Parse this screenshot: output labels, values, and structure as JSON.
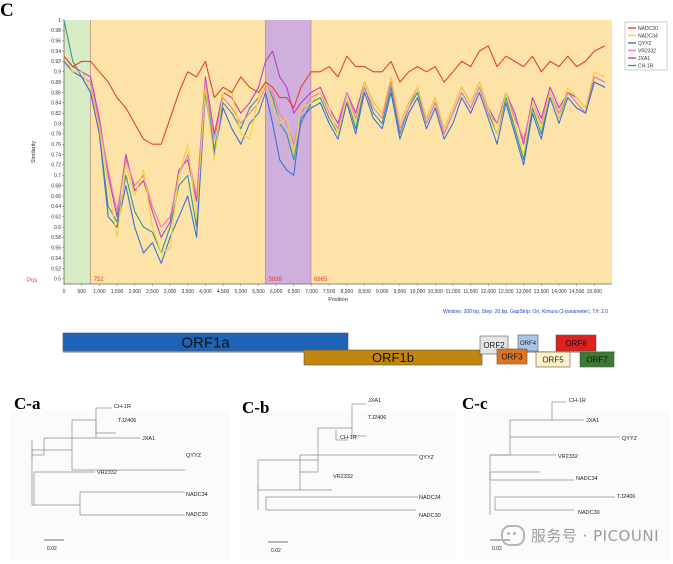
{
  "panel_labels": {
    "main": "C",
    "tree_a": "C-a",
    "tree_b": "C-b",
    "tree_c": "C-c"
  },
  "watermark": "服务号 · PICOUNI",
  "colors": {
    "NADC30": "#e8402a",
    "NADC34": "#f2d23a",
    "QYYZ": "#3f6fd8",
    "VR2332": "#f07ab0",
    "JXA1": "#c23cc4",
    "CH-1R": "#2f9a8e",
    "plot_bg": "#fde3a7",
    "green_region": "#d7ecc4",
    "purple_region": "#cfb0dc",
    "orf1a": "#1f63b7",
    "orf1b": "#c2860c",
    "orf2": "#e5e5e5",
    "orf4": "#a9c6ec",
    "orf6": "#e0201e",
    "orf3": "#e0731c",
    "orf5": "#fff2c6",
    "orf7": "#3b7a34"
  },
  "chart_data": [
    {
      "type": "line",
      "title": "",
      "xlabel": "Position",
      "ylabel": "Similarity",
      "xlim": [
        0,
        15500
      ],
      "ylim": [
        0.49,
        1.0
      ],
      "yticks": [
        0.5,
        0.52,
        0.54,
        0.56,
        0.58,
        0.6,
        0.62,
        0.64,
        0.66,
        0.68,
        0.7,
        0.72,
        0.74,
        0.76,
        0.78,
        0.8,
        0.82,
        0.84,
        0.86,
        0.88,
        0.9,
        0.92,
        0.94,
        0.96,
        0.98,
        1.0
      ],
      "ytick_labels": [
        "0.5",
        "0.52",
        "0.54",
        "0.56",
        "0.58",
        "0.6",
        "0.62",
        "0.64",
        "0.66",
        "0.68",
        "0.7",
        "0.72",
        "0.74",
        "0.76",
        "0.78",
        "0.8",
        "0.82",
        "0.84",
        "0.86",
        "0.88",
        "0.9",
        "0.92",
        "0.94",
        "0.96",
        "0.98",
        "1"
      ],
      "xticks": [
        0,
        500,
        1000,
        1500,
        2000,
        2500,
        3000,
        3500,
        4000,
        4500,
        5000,
        5500,
        6000,
        6500,
        7000,
        7500,
        8000,
        8500,
        9000,
        9500,
        10000,
        10500,
        11000,
        11500,
        12000,
        12500,
        13000,
        13500,
        14000,
        14500,
        15000
      ],
      "xtick_labels": [
        "0",
        "500",
        "1,000",
        "1,500",
        "2,000",
        "2,500",
        "3,000",
        "3,500",
        "4,000",
        "4,500",
        "5,000",
        "5,500",
        "6,000",
        "6,500",
        "7,000",
        "7,500",
        "8,000",
        "8,500",
        "9,000",
        "9,500",
        "10,000",
        "10,500",
        "11,000",
        "11,500",
        "12,000",
        "12,500",
        "13,000",
        "13,500",
        "14,000",
        "14,500",
        "15,000"
      ],
      "regions": [
        {
          "start": 0,
          "end": 752,
          "fill": "green"
        },
        {
          "start": 752,
          "end": 5698,
          "fill": "orange"
        },
        {
          "start": 5698,
          "end": 6985,
          "fill": "purple"
        },
        {
          "start": 6985,
          "end": 15500,
          "fill": "orange"
        }
      ],
      "breakpoint_labels": [
        "752",
        "5698",
        "6985"
      ],
      "breakpoint_positions": [
        752,
        5698,
        6985
      ],
      "pos_label": "Pos",
      "legend": [
        "NADC30",
        "NADC34",
        "QYYZ",
        "VR2332",
        "JXA1",
        "CH-1R"
      ],
      "legend_position": "top-right",
      "footer": "Window: 200 bp, Step: 20 bp, GapStrip: On, Kimura (2-parameter), T/t: 2.0",
      "x": [
        0,
        250,
        500,
        752,
        1000,
        1250,
        1500,
        1750,
        2000,
        2250,
        2500,
        2750,
        3000,
        3250,
        3500,
        3750,
        4000,
        4250,
        4500,
        4750,
        5000,
        5250,
        5500,
        5700,
        5900,
        6100,
        6300,
        6500,
        6700,
        6985,
        7250,
        7500,
        7750,
        8000,
        8250,
        8500,
        8750,
        9000,
        9250,
        9500,
        9750,
        10000,
        10250,
        10500,
        10750,
        11000,
        11250,
        11500,
        11750,
        12000,
        12250,
        12500,
        12750,
        13000,
        13250,
        13500,
        13750,
        14000,
        14250,
        14500,
        14750,
        15000,
        15300
      ],
      "series": [
        {
          "name": "NADC30",
          "values": [
            0.93,
            0.91,
            0.92,
            0.92,
            0.9,
            0.88,
            0.85,
            0.83,
            0.8,
            0.77,
            0.76,
            0.76,
            0.81,
            0.86,
            0.9,
            0.89,
            0.92,
            0.85,
            0.87,
            0.86,
            0.89,
            0.87,
            0.86,
            0.88,
            0.87,
            0.85,
            0.85,
            0.83,
            0.87,
            0.9,
            0.9,
            0.91,
            0.89,
            0.93,
            0.91,
            0.91,
            0.9,
            0.9,
            0.92,
            0.88,
            0.9,
            0.91,
            0.9,
            0.91,
            0.88,
            0.9,
            0.92,
            0.91,
            0.94,
            0.95,
            0.91,
            0.93,
            0.92,
            0.91,
            0.93,
            0.9,
            0.92,
            0.91,
            0.93,
            0.91,
            0.92,
            0.94,
            0.95
          ]
        },
        {
          "name": "NADC34",
          "values": [
            0.93,
            0.9,
            0.9,
            0.87,
            0.79,
            0.68,
            0.58,
            0.72,
            0.66,
            0.71,
            0.6,
            0.55,
            0.56,
            0.7,
            0.76,
            0.62,
            0.87,
            0.73,
            0.86,
            0.86,
            0.78,
            0.77,
            0.85,
            0.88,
            0.84,
            0.8,
            0.81,
            0.74,
            0.83,
            0.84,
            0.86,
            0.83,
            0.78,
            0.85,
            0.8,
            0.88,
            0.84,
            0.82,
            0.89,
            0.8,
            0.84,
            0.87,
            0.81,
            0.85,
            0.79,
            0.83,
            0.87,
            0.84,
            0.88,
            0.83,
            0.78,
            0.86,
            0.8,
            0.74,
            0.84,
            0.79,
            0.86,
            0.81,
            0.87,
            0.85,
            0.83,
            0.9,
            0.89
          ]
        },
        {
          "name": "QYYZ",
          "values": [
            0.92,
            0.9,
            0.89,
            0.86,
            0.78,
            0.62,
            0.6,
            0.68,
            0.6,
            0.55,
            0.57,
            0.53,
            0.58,
            0.62,
            0.66,
            0.58,
            0.86,
            0.74,
            0.83,
            0.79,
            0.76,
            0.8,
            0.82,
            0.86,
            0.8,
            0.73,
            0.71,
            0.7,
            0.81,
            0.83,
            0.84,
            0.8,
            0.77,
            0.84,
            0.78,
            0.86,
            0.81,
            0.79,
            0.86,
            0.77,
            0.82,
            0.85,
            0.79,
            0.83,
            0.77,
            0.8,
            0.85,
            0.82,
            0.86,
            0.81,
            0.76,
            0.84,
            0.78,
            0.72,
            0.82,
            0.77,
            0.85,
            0.8,
            0.85,
            0.83,
            0.82,
            0.88,
            0.87
          ]
        },
        {
          "name": "VR2332",
          "values": [
            0.92,
            0.9,
            0.89,
            0.88,
            0.8,
            0.71,
            0.63,
            0.73,
            0.68,
            0.7,
            0.64,
            0.6,
            0.62,
            0.7,
            0.74,
            0.66,
            0.88,
            0.77,
            0.85,
            0.83,
            0.8,
            0.82,
            0.84,
            0.87,
            0.86,
            0.82,
            0.8,
            0.76,
            0.82,
            0.85,
            0.86,
            0.82,
            0.79,
            0.86,
            0.81,
            0.87,
            0.83,
            0.81,
            0.88,
            0.79,
            0.83,
            0.87,
            0.8,
            0.84,
            0.78,
            0.82,
            0.86,
            0.83,
            0.87,
            0.82,
            0.8,
            0.86,
            0.81,
            0.77,
            0.84,
            0.8,
            0.86,
            0.82,
            0.86,
            0.84,
            0.82,
            0.89,
            0.88
          ]
        },
        {
          "name": "JXA1",
          "values": [
            0.93,
            0.91,
            0.9,
            0.89,
            0.81,
            0.7,
            0.62,
            0.74,
            0.67,
            0.69,
            0.63,
            0.58,
            0.61,
            0.71,
            0.73,
            0.65,
            0.89,
            0.78,
            0.86,
            0.85,
            0.82,
            0.84,
            0.87,
            0.92,
            0.94,
            0.89,
            0.87,
            0.82,
            0.84,
            0.86,
            0.87,
            0.83,
            0.8,
            0.86,
            0.82,
            0.88,
            0.84,
            0.82,
            0.88,
            0.8,
            0.84,
            0.87,
            0.81,
            0.85,
            0.79,
            0.83,
            0.87,
            0.84,
            0.88,
            0.83,
            0.8,
            0.86,
            0.82,
            0.76,
            0.85,
            0.81,
            0.87,
            0.83,
            0.86,
            0.85,
            0.83,
            0.89,
            0.88
          ]
        },
        {
          "name": "CH-1R",
          "values": [
            1.0,
            0.92,
            0.89,
            0.86,
            0.78,
            0.64,
            0.61,
            0.7,
            0.63,
            0.6,
            0.59,
            0.55,
            0.6,
            0.68,
            0.7,
            0.6,
            0.87,
            0.75,
            0.84,
            0.82,
            0.79,
            0.83,
            0.85,
            0.88,
            0.85,
            0.8,
            0.78,
            0.73,
            0.8,
            0.84,
            0.85,
            0.81,
            0.78,
            0.85,
            0.79,
            0.87,
            0.82,
            0.8,
            0.87,
            0.78,
            0.83,
            0.86,
            0.8,
            0.84,
            0.78,
            0.82,
            0.86,
            0.83,
            0.87,
            0.82,
            0.78,
            0.85,
            0.79,
            0.73,
            0.83,
            0.78,
            0.86,
            0.81,
            0.86,
            0.84,
            0.82,
            0.88,
            0.87
          ]
        }
      ]
    },
    {
      "type": "genome-map",
      "orfs": [
        {
          "name": "ORF1a",
          "row": "top"
        },
        {
          "name": "ORF1b",
          "row": "bottom"
        },
        {
          "name": "ORF2",
          "row": "top"
        },
        {
          "name": "ORF4",
          "row": "top"
        },
        {
          "name": "ORF6",
          "row": "top"
        },
        {
          "name": "ORF3",
          "row": "bottom"
        },
        {
          "name": "ORF5",
          "row": "bottom"
        },
        {
          "name": "ORF7",
          "row": "bottom"
        }
      ]
    },
    {
      "type": "tree",
      "id": "C-a",
      "leaves": [
        "CH-1R",
        "TJ2406",
        "JXA1",
        "QYYZ",
        "VR2332",
        "NADC34",
        "NADC30"
      ],
      "scale_label": "0.02"
    },
    {
      "type": "tree",
      "id": "C-b",
      "leaves": [
        "JXA1",
        "TJ2406",
        "CH-1R",
        "QYYZ",
        "VR2332",
        "NADC34",
        "NADC30"
      ],
      "scale_label": "0.02"
    },
    {
      "type": "tree",
      "id": "C-c",
      "leaves": [
        "CH-1R",
        "JXA1",
        "QYYZ",
        "VR2332",
        "NADC34",
        "TJ2406",
        "NADC30"
      ],
      "scale_label": "0.02"
    }
  ]
}
